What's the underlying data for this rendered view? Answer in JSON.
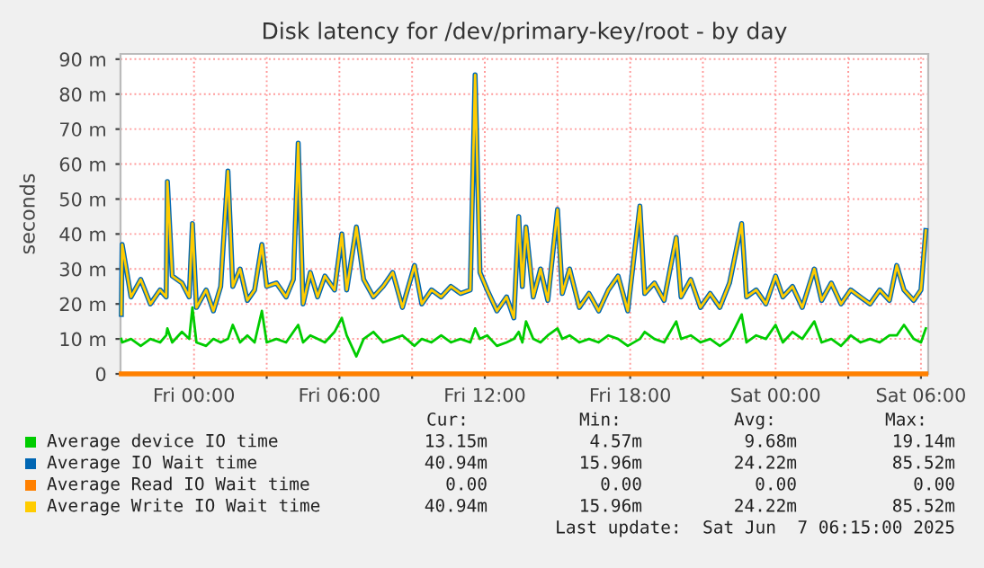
{
  "chart_data": {
    "type": "line",
    "title": "Disk latency for /dev/primary-key/root - by day",
    "ylabel": "seconds",
    "x": [
      "2025-06-05T21:00",
      "2025-06-05T21:02",
      "2025-06-05T21:24",
      "2025-06-05T21:48",
      "2025-06-05T22:12",
      "2025-06-05T22:36",
      "2025-06-05T22:51",
      "2025-06-05T22:54",
      "2025-06-05T23:06",
      "2025-06-05T23:30",
      "2025-06-05T23:48",
      "2025-06-05T23:56",
      "2025-06-06T00:06",
      "2025-06-06T00:30",
      "2025-06-06T00:48",
      "2025-06-06T01:06",
      "2025-06-06T01:24",
      "2025-06-06T01:36",
      "2025-06-06T01:54",
      "2025-06-06T02:12",
      "2025-06-06T02:30",
      "2025-06-06T02:48",
      "2025-06-06T03:00",
      "2025-06-06T03:24",
      "2025-06-06T03:48",
      "2025-06-06T04:06",
      "2025-06-06T04:18",
      "2025-06-06T04:30",
      "2025-06-06T04:48",
      "2025-06-06T05:06",
      "2025-06-06T05:24",
      "2025-06-06T05:48",
      "2025-06-06T06:06",
      "2025-06-06T06:18",
      "2025-06-06T06:42",
      "2025-06-06T07:00",
      "2025-06-06T07:24",
      "2025-06-06T07:48",
      "2025-06-06T08:12",
      "2025-06-06T08:36",
      "2025-06-06T09:06",
      "2025-06-06T09:24",
      "2025-06-06T09:48",
      "2025-06-06T10:12",
      "2025-06-06T10:36",
      "2025-06-06T11:00",
      "2025-06-06T11:24",
      "2025-06-06T11:36",
      "2025-06-06T11:48",
      "2025-06-06T12:06",
      "2025-06-06T12:30",
      "2025-06-06T12:54",
      "2025-06-06T13:12",
      "2025-06-06T13:24",
      "2025-06-06T13:33",
      "2025-06-06T13:42",
      "2025-06-06T14:00",
      "2025-06-06T14:18",
      "2025-06-06T14:36",
      "2025-06-06T15:00",
      "2025-06-06T15:12",
      "2025-06-06T15:30",
      "2025-06-06T15:54",
      "2025-06-06T16:18",
      "2025-06-06T16:42",
      "2025-06-06T17:06",
      "2025-06-06T17:30",
      "2025-06-06T17:54",
      "2025-06-06T18:24",
      "2025-06-06T18:36",
      "2025-06-06T19:00",
      "2025-06-06T19:24",
      "2025-06-06T19:54",
      "2025-06-06T20:06",
      "2025-06-06T20:30",
      "2025-06-06T20:54",
      "2025-06-06T21:18",
      "2025-06-06T21:42",
      "2025-06-06T22:06",
      "2025-06-06T22:36",
      "2025-06-06T22:48",
      "2025-06-06T23:12",
      "2025-06-06T23:36",
      "2025-06-07T00:00",
      "2025-06-07T00:18",
      "2025-06-07T00:42",
      "2025-06-07T01:06",
      "2025-06-07T01:36",
      "2025-06-07T01:54",
      "2025-06-07T02:18",
      "2025-06-07T02:42",
      "2025-06-07T03:06",
      "2025-06-07T03:30",
      "2025-06-07T03:54",
      "2025-06-07T04:18",
      "2025-06-07T04:42",
      "2025-06-07T05:00",
      "2025-06-07T05:18",
      "2025-06-07T05:42",
      "2025-06-07T06:00",
      "2025-06-07T06:12"
    ],
    "series": [
      {
        "name": "Average device IO time",
        "color": "#00cc00",
        "values": [
          10,
          9,
          10,
          8,
          10,
          9,
          11,
          13,
          9,
          12,
          10,
          19,
          9,
          8,
          10,
          9,
          10,
          14,
          9,
          11,
          9,
          18,
          9,
          10,
          9,
          12,
          14,
          9,
          11,
          10,
          9,
          12,
          16,
          11,
          5,
          10,
          12,
          9,
          10,
          11,
          8,
          10,
          9,
          11,
          9,
          10,
          9,
          13,
          10,
          11,
          8,
          9,
          10,
          12,
          9,
          15,
          10,
          9,
          11,
          13,
          10,
          11,
          9,
          10,
          9,
          11,
          10,
          8,
          10,
          12,
          10,
          9,
          15,
          10,
          11,
          9,
          10,
          8,
          10,
          17,
          9,
          11,
          10,
          14,
          9,
          12,
          10,
          15,
          9,
          10,
          8,
          11,
          9,
          10,
          9,
          11,
          11,
          14,
          10,
          9,
          13
        ]
      },
      {
        "name": "Average IO Wait time",
        "color": "#0066b3",
        "values": [
          17,
          37,
          22,
          27,
          20,
          24,
          22,
          55,
          28,
          26,
          22,
          43,
          19,
          24,
          18,
          25,
          58,
          25,
          30,
          21,
          24,
          37,
          25,
          26,
          22,
          27,
          66,
          20,
          29,
          22,
          28,
          24,
          40,
          24,
          42,
          27,
          22,
          25,
          29,
          19,
          31,
          20,
          24,
          22,
          25,
          23,
          24,
          85.5,
          29,
          24,
          18,
          22,
          16,
          45,
          25,
          42,
          22,
          30,
          21,
          47,
          23,
          30,
          19,
          23,
          18,
          24,
          28,
          18,
          48,
          23,
          26,
          21,
          39,
          22,
          27,
          19,
          23,
          19,
          26,
          43,
          22,
          24,
          20,
          28,
          22,
          25,
          19,
          30,
          21,
          26,
          20,
          24,
          22,
          20,
          24,
          21,
          31,
          24,
          21,
          24,
          41
        ]
      },
      {
        "name": "Average Read IO Wait time",
        "color": "#ff8000",
        "x": [
          "2025-06-05T21:00",
          "2025-06-07T06:12"
        ],
        "values": [
          0,
          0
        ]
      },
      {
        "name": "Average Write IO Wait time",
        "color": "#ffcc00",
        "values": [
          17,
          37,
          22,
          27,
          20,
          24,
          22,
          55,
          28,
          26,
          22,
          43,
          19,
          24,
          18,
          25,
          58,
          25,
          30,
          21,
          24,
          37,
          25,
          26,
          22,
          27,
          66,
          20,
          29,
          22,
          28,
          24,
          40,
          24,
          42,
          27,
          22,
          25,
          29,
          19,
          31,
          20,
          24,
          22,
          25,
          23,
          24,
          85.5,
          29,
          24,
          18,
          22,
          16,
          45,
          25,
          42,
          22,
          30,
          21,
          47,
          23,
          30,
          19,
          23,
          18,
          24,
          28,
          18,
          48,
          23,
          26,
          21,
          39,
          22,
          27,
          19,
          23,
          19,
          26,
          43,
          22,
          24,
          20,
          28,
          22,
          25,
          19,
          30,
          21,
          26,
          20,
          24,
          22,
          20,
          24,
          21,
          31,
          24,
          21,
          24,
          41
        ]
      }
    ],
    "xlim": [
      "2025-06-05T20:58",
      "2025-06-07T06:18"
    ],
    "xticks": [
      {
        "value": "2025-06-06T00:00",
        "label": "Fri 00:00"
      },
      {
        "value": "2025-06-06T03:00",
        "label": null
      },
      {
        "value": "2025-06-06T06:00",
        "label": "Fri 06:00"
      },
      {
        "value": "2025-06-06T09:00",
        "label": null
      },
      {
        "value": "2025-06-06T12:00",
        "label": "Fri 12:00"
      },
      {
        "value": "2025-06-06T15:00",
        "label": null
      },
      {
        "value": "2025-06-06T18:00",
        "label": "Fri 18:00"
      },
      {
        "value": "2025-06-06T21:00",
        "label": null
      },
      {
        "value": "2025-06-07T00:00",
        "label": "Sat 00:00"
      },
      {
        "value": "2025-06-07T03:00",
        "label": null
      },
      {
        "value": "2025-06-07T06:00",
        "label": "Sat 06:00"
      }
    ],
    "ylim": [
      0,
      91.5
    ],
    "yticks": [
      0,
      {
        "value": 10,
        "label": "10 m"
      },
      {
        "value": 20,
        "label": "20 m"
      },
      {
        "value": 30,
        "label": "30 m"
      },
      {
        "value": 40,
        "label": "40 m"
      },
      {
        "value": 50,
        "label": "50 m"
      },
      {
        "value": 60,
        "label": "60 m"
      },
      {
        "value": 70,
        "label": "70 m"
      },
      {
        "value": 80,
        "label": "80 m"
      },
      {
        "value": 90,
        "label": "90 m"
      }
    ],
    "grid": true,
    "legend": "bottom",
    "marker": "none",
    "line_style": "solid",
    "annotations": [
      "Cur:",
      "Min:",
      "Avg:",
      "Max:",
      "13.15m",
      "4.57m",
      "9.68m",
      "19.14m",
      "40.94m",
      "15.96m",
      "24.22m",
      "85.52m",
      "0.00",
      "0.00",
      "0.00",
      "0.00",
      "40.94m",
      "15.96m",
      "24.22m",
      "85.52m",
      "Last update:  Sat Jun  7 06:15:00 2025"
    ]
  }
}
